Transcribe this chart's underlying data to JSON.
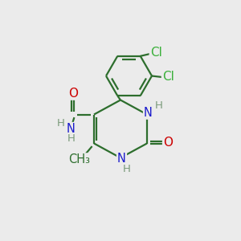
{
  "background_color": "#ebebeb",
  "bond_color": "#2d6e2d",
  "bond_width": 1.6,
  "atom_colors": {
    "C": "#2d6e2d",
    "N": "#1a1acc",
    "O": "#cc0000",
    "Cl": "#3ab03a",
    "H": "#7a9a7a"
  },
  "font_size": 10.5,
  "font_size_h": 9.5
}
